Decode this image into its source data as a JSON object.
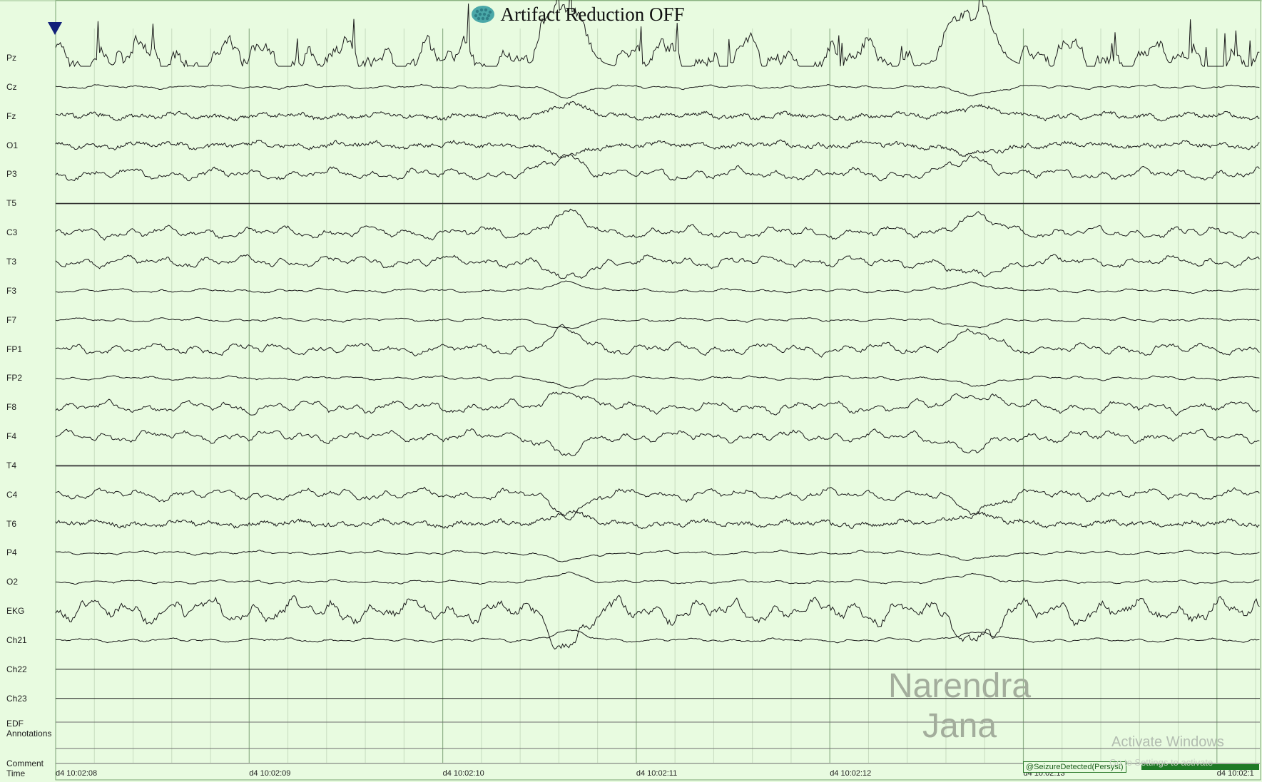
{
  "header": {
    "title": "Artifact Reduction OFF",
    "icon": "brain-icon"
  },
  "channels": [
    {
      "label": "Pz",
      "trace": "wild"
    },
    {
      "label": "Cz",
      "trace": "low"
    },
    {
      "label": "Fz",
      "trace": "busy"
    },
    {
      "label": "O1",
      "trace": "busy"
    },
    {
      "label": "P3",
      "trace": "normal"
    },
    {
      "label": "T5",
      "trace": "flat"
    },
    {
      "label": "C3",
      "trace": "normal"
    },
    {
      "label": "T3",
      "trace": "normal"
    },
    {
      "label": "F3",
      "trace": "low"
    },
    {
      "label": "F7",
      "trace": "low"
    },
    {
      "label": "FP1",
      "trace": "normal"
    },
    {
      "label": "FP2",
      "trace": "low"
    },
    {
      "label": "F8",
      "trace": "normal"
    },
    {
      "label": "F4",
      "trace": "normal"
    },
    {
      "label": "T4",
      "trace": "flat"
    },
    {
      "label": "C4",
      "trace": "normal"
    },
    {
      "label": "T6",
      "trace": "busy"
    },
    {
      "label": "P4",
      "trace": "low"
    },
    {
      "label": "O2",
      "trace": "low"
    },
    {
      "label": "EKG",
      "trace": "large"
    },
    {
      "label": "Ch21",
      "trace": "low"
    },
    {
      "label": "Ch22",
      "trace": "flat"
    },
    {
      "label": "Ch23",
      "trace": "flat"
    }
  ],
  "extra_rows": {
    "edf_line1": "EDF",
    "edf_line2": "Annotations",
    "comment": "Comment",
    "time": "Time"
  },
  "time_axis": [
    "d4 10:02:08",
    "d4 10:02:09",
    "d4 10:02:10",
    "d4 10:02:11",
    "d4 10:02:12",
    "d4 10:02:13",
    "d4 10:02:1"
  ],
  "annotation": "@SeizureDetected(Persyst)",
  "watermark": {
    "line1": "Narendra",
    "line2": "Jana"
  },
  "overlay": {
    "activate": "Activate Windows",
    "activate_sub": "Go to Settings to activate"
  },
  "colors": {
    "background": "#e8fbe0",
    "grid_major": "#8fb088",
    "grid_minor": "#c7dcbf",
    "trace": "#1a1a1a",
    "marker": "#12207a",
    "seizure": "#1f7a26"
  }
}
